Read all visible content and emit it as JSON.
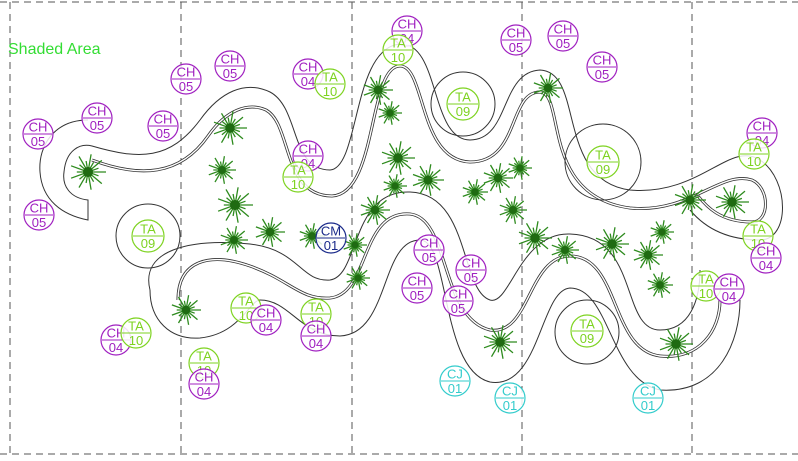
{
  "caption": "Shaded Area",
  "colors": {
    "background": "#ffffff",
    "outline": "#333333",
    "grid": "#555555",
    "tree": "#2e8b1e",
    "tree_dark": "#1f6b12",
    "CH": "#a020c0",
    "TA": "#7ed321",
    "CM": "#1a2a8a",
    "CJ": "#33cccc",
    "caption": "#33dd33"
  },
  "tags": [
    {
      "top": "CH",
      "bottom": "05",
      "kind": "CH"
    },
    {
      "top": "CH",
      "bottom": "05",
      "kind": "CH"
    },
    {
      "top": "CH",
      "bottom": "05",
      "kind": "CH"
    },
    {
      "top": "CH",
      "bottom": "05",
      "kind": "CH"
    },
    {
      "top": "CH",
      "bottom": "05",
      "kind": "CH"
    },
    {
      "top": "CH",
      "bottom": "05",
      "kind": "CH"
    },
    {
      "top": "CH",
      "bottom": "04",
      "kind": "CH"
    },
    {
      "top": "TA",
      "bottom": "10",
      "kind": "TA"
    },
    {
      "top": "CH",
      "bottom": "04",
      "kind": "CH"
    },
    {
      "top": "TA",
      "bottom": "10",
      "kind": "TA"
    },
    {
      "top": "CH",
      "bottom": "04",
      "kind": "CH"
    },
    {
      "top": "TA",
      "bottom": "10",
      "kind": "TA"
    },
    {
      "top": "TA",
      "bottom": "09",
      "kind": "TA"
    },
    {
      "top": "CH",
      "bottom": "05",
      "kind": "CH"
    },
    {
      "top": "CH",
      "bottom": "05",
      "kind": "CH"
    },
    {
      "top": "CH",
      "bottom": "05",
      "kind": "CH"
    },
    {
      "top": "TA",
      "bottom": "09",
      "kind": "TA"
    },
    {
      "top": "CH",
      "bottom": "04",
      "kind": "CH"
    },
    {
      "top": "TA",
      "bottom": "10",
      "kind": "TA"
    },
    {
      "top": "TA",
      "bottom": "09",
      "kind": "TA"
    },
    {
      "top": "CM",
      "bottom": "01",
      "kind": "CM"
    },
    {
      "top": "CH",
      "bottom": "05",
      "kind": "CH"
    },
    {
      "top": "CH",
      "bottom": "05",
      "kind": "CH"
    },
    {
      "top": "CH",
      "bottom": "05",
      "kind": "CH"
    },
    {
      "top": "CH",
      "bottom": "05",
      "kind": "CH"
    },
    {
      "top": "TA",
      "bottom": "10",
      "kind": "TA"
    },
    {
      "top": "CH",
      "bottom": "04",
      "kind": "CH"
    },
    {
      "top": "TA",
      "bottom": "10",
      "kind": "TA"
    },
    {
      "top": "CH",
      "bottom": "04",
      "kind": "CH"
    },
    {
      "top": "CH",
      "bottom": "04",
      "kind": "CH"
    },
    {
      "top": "TA",
      "bottom": "10",
      "kind": "TA"
    },
    {
      "top": "TA",
      "bottom": "10",
      "kind": "TA"
    },
    {
      "top": "CH",
      "bottom": "04",
      "kind": "CH"
    },
    {
      "top": "TA",
      "bottom": "10",
      "kind": "TA"
    },
    {
      "top": "CH",
      "bottom": "04",
      "kind": "CH"
    },
    {
      "top": "TA",
      "bottom": "10",
      "kind": "TA"
    },
    {
      "top": "CH",
      "bottom": "04",
      "kind": "CH"
    },
    {
      "top": "TA",
      "bottom": "09",
      "kind": "TA"
    },
    {
      "top": "CJ",
      "bottom": "01",
      "kind": "CJ"
    },
    {
      "top": "CJ",
      "bottom": "01",
      "kind": "CJ"
    },
    {
      "top": "CJ",
      "bottom": "01",
      "kind": "CJ"
    }
  ]
}
